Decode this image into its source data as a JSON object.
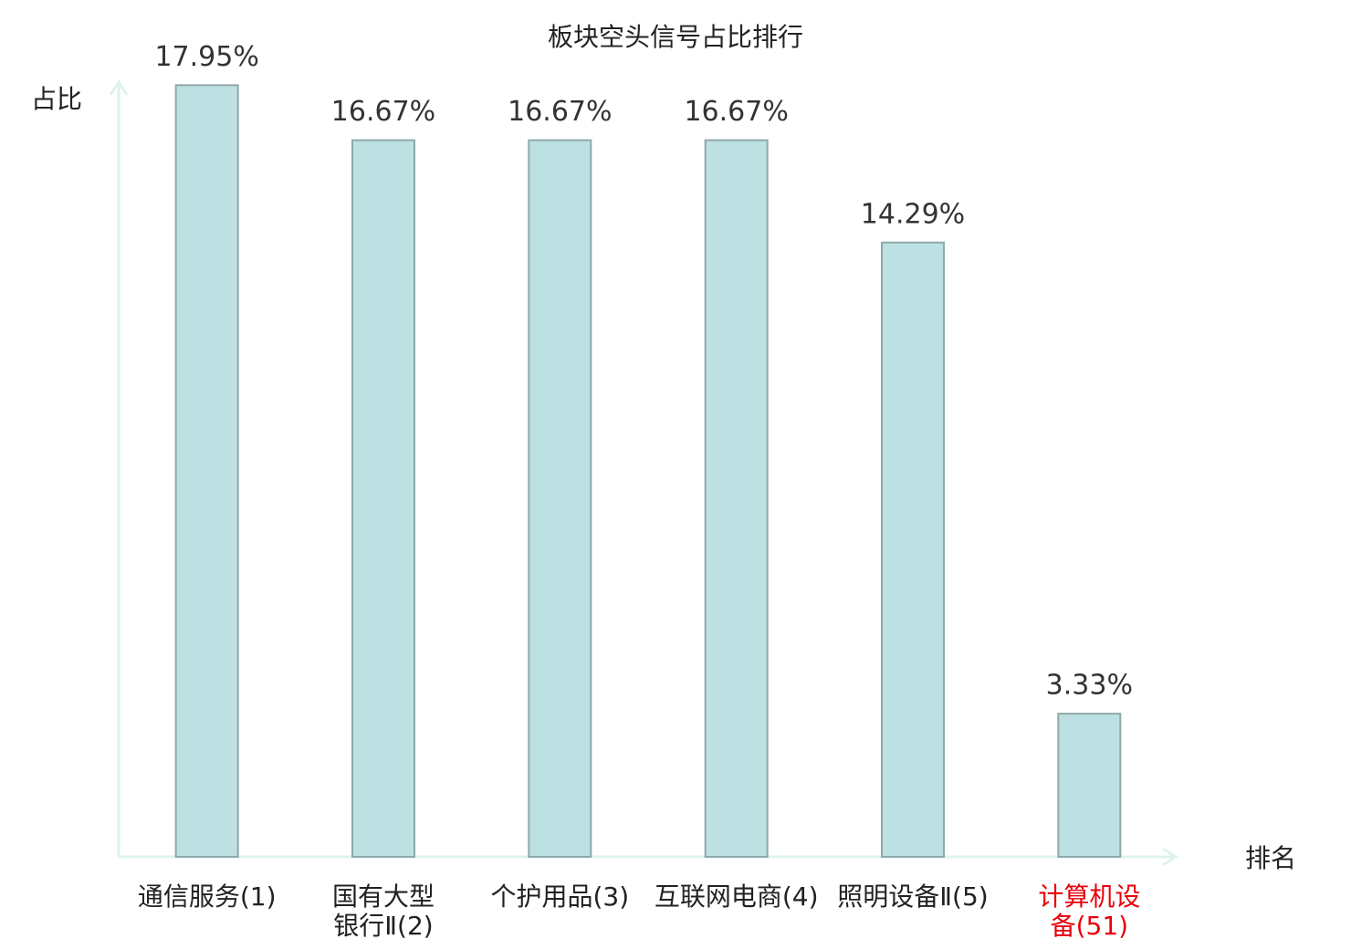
{
  "chart_data": {
    "type": "bar",
    "title": "板块空头信号占比排行",
    "y_label": "占比",
    "x_label": "排名",
    "categories": [
      "通信服务(1)",
      "国有大型银行Ⅱ(2)",
      "个护用品(3)",
      "互联网电商(4)",
      "照明设备Ⅱ(5)",
      "计算机设备(51)"
    ],
    "values": [
      17.95,
      16.67,
      16.67,
      16.67,
      14.29,
      3.33
    ],
    "value_labels": [
      "17.95%",
      "16.67%",
      "16.67%",
      "16.67%",
      "14.29%",
      "3.33%"
    ],
    "color": "#bde0e3",
    "edge_color": "#8fa8aa",
    "axis_color": "#dff2ef",
    "highlight_index": 5,
    "highlight_color": "#e8000b",
    "ylim": [
      0,
      18
    ]
  }
}
